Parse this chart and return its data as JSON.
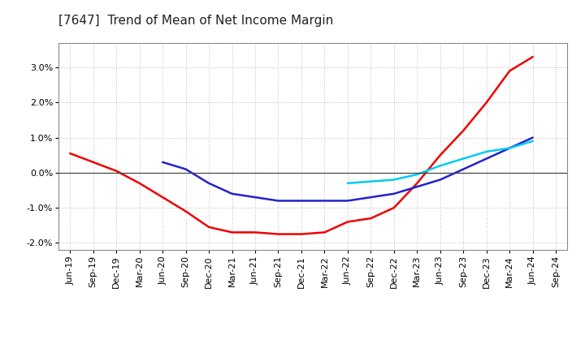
{
  "title": "[7647]  Trend of Mean of Net Income Margin",
  "background_color": "#ffffff",
  "plot_bg_color": "#ffffff",
  "grid_color": "#aaaaaa",
  "ylim": [
    -0.022,
    0.037
  ],
  "yticks": [
    -0.02,
    -0.01,
    0.0,
    0.01,
    0.02,
    0.03
  ],
  "x_labels": [
    "Jun-19",
    "Sep-19",
    "Dec-19",
    "Mar-20",
    "Jun-20",
    "Sep-20",
    "Dec-20",
    "Mar-21",
    "Jun-21",
    "Sep-21",
    "Dec-21",
    "Mar-22",
    "Jun-22",
    "Sep-22",
    "Dec-22",
    "Mar-23",
    "Jun-23",
    "Sep-23",
    "Dec-23",
    "Mar-24",
    "Jun-24",
    "Sep-24"
  ],
  "series_3yr": [
    0.0055,
    0.003,
    0.0005,
    -0.003,
    -0.007,
    -0.011,
    -0.0155,
    -0.017,
    -0.017,
    -0.0175,
    -0.0175,
    -0.017,
    -0.014,
    -0.013,
    -0.01,
    -0.003,
    0.005,
    0.012,
    0.02,
    0.029,
    0.033,
    null
  ],
  "series_5yr": [
    null,
    null,
    null,
    null,
    0.003,
    0.001,
    -0.003,
    -0.006,
    -0.007,
    -0.008,
    -0.008,
    -0.008,
    -0.008,
    -0.007,
    -0.006,
    -0.004,
    -0.002,
    0.001,
    0.004,
    0.007,
    0.01,
    null
  ],
  "series_7yr": [
    null,
    null,
    null,
    null,
    null,
    null,
    null,
    null,
    null,
    null,
    null,
    null,
    -0.003,
    -0.0025,
    -0.002,
    -0.0005,
    0.002,
    0.004,
    0.006,
    0.007,
    0.009,
    null
  ],
  "series_10yr": [
    null,
    null,
    null,
    null,
    null,
    null,
    null,
    null,
    null,
    null,
    null,
    null,
    null,
    null,
    null,
    null,
    null,
    null,
    null,
    null,
    null,
    null
  ],
  "colors": {
    "3yr": "#ee0000",
    "5yr": "#2222cc",
    "7yr": "#00ccee",
    "10yr": "#009900"
  },
  "title_fontsize": 11,
  "tick_fontsize": 8,
  "lw": 1.8
}
